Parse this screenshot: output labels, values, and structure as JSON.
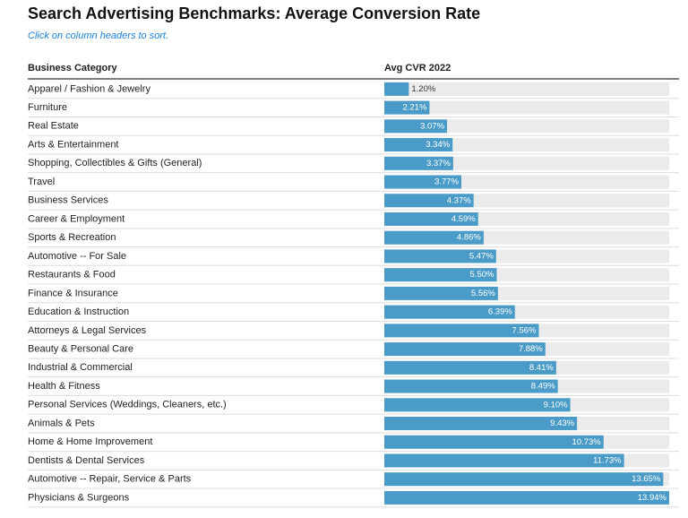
{
  "chart_data": {
    "type": "bar",
    "orientation": "horizontal",
    "title": "Search Advertising Benchmarks: Average Conversion Rate",
    "subtitle": "Click on column headers to sort.",
    "category_header": "Business Category",
    "value_header": "Avg CVR 2022",
    "color": "#4a9bc7",
    "categories": [
      "Apparel / Fashion & Jewelry",
      "Furniture",
      "Real Estate",
      "Arts & Entertainment",
      "Shopping, Collectibles & Gifts (General)",
      "Travel",
      "Business Services",
      "Career & Employment",
      "Sports & Recreation",
      "Automotive -- For Sale",
      "Restaurants & Food",
      "Finance & Insurance",
      "Education & Instruction",
      "Attorneys & Legal Services",
      "Beauty & Personal Care",
      "Industrial & Commercial",
      "Health & Fitness",
      "Personal Services (Weddings, Cleaners, etc.)",
      "Animals & Pets",
      "Home & Home Improvement",
      "Dentists & Dental Services",
      "Automotive -- Repair, Service & Parts",
      "Physicians & Surgeons"
    ],
    "values": [
      1.2,
      2.21,
      3.07,
      3.34,
      3.37,
      3.77,
      4.37,
      4.59,
      4.86,
      5.47,
      5.5,
      5.56,
      6.39,
      7.56,
      7.88,
      8.41,
      8.49,
      9.1,
      9.43,
      10.73,
      11.73,
      13.65,
      13.94
    ],
    "value_labels": [
      "1.20%",
      "2.21%",
      "3.07%",
      "3.34%",
      "3.37%",
      "3.77%",
      "4.37%",
      "4.59%",
      "4.86%",
      "5.47%",
      "5.50%",
      "5.56%",
      "6.39%",
      "7.56%",
      "7.88%",
      "8.41%",
      "8.49%",
      "9.10%",
      "9.43%",
      "10.73%",
      "11.73%",
      "13.65%",
      "13.94%"
    ]
  }
}
